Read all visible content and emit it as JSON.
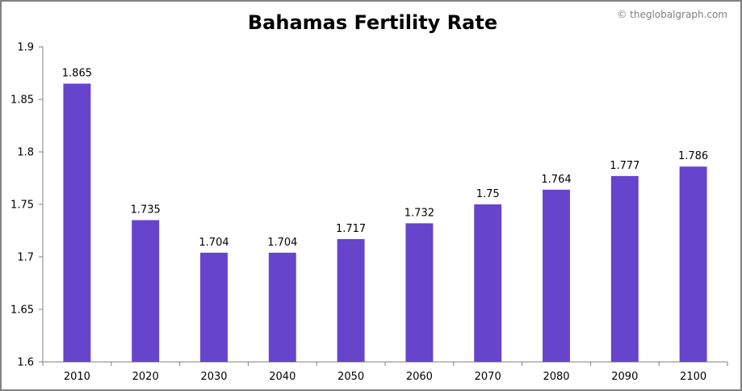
{
  "watermark": "© theglobalgraph.com",
  "chart_data": {
    "type": "bar",
    "title": "Bahamas Fertility Rate",
    "xlabel": "",
    "ylabel": "",
    "categories": [
      "2010",
      "2020",
      "2030",
      "2040",
      "2050",
      "2060",
      "2070",
      "2080",
      "2090",
      "2100"
    ],
    "values": [
      1.865,
      1.735,
      1.704,
      1.704,
      1.717,
      1.732,
      1.75,
      1.764,
      1.777,
      1.786
    ],
    "data_labels": [
      "1.865",
      "1.735",
      "1.704",
      "1.704",
      "1.717",
      "1.732",
      "1.75",
      "1.764",
      "1.777",
      "1.786"
    ],
    "ylim": [
      1.6,
      1.9
    ],
    "yticks": [
      "1.6",
      "1.65",
      "1.7",
      "1.75",
      "1.8",
      "1.85",
      "1.9"
    ],
    "grid": false,
    "legend": "none",
    "bar_color": "#6644cc"
  }
}
